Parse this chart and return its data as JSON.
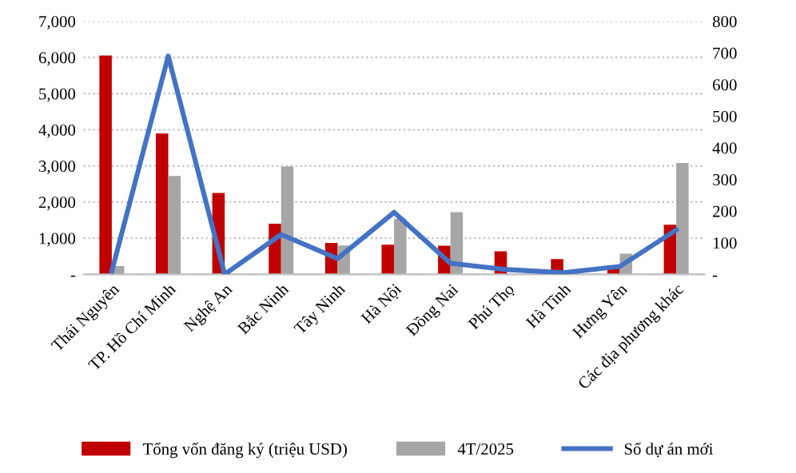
{
  "chart_data": {
    "type": "bar",
    "categories": [
      "Thái Nguyên",
      "TP. Hồ Chí Minh",
      "Nghệ An",
      "Bắc Ninh",
      "Tây Ninh",
      "Hà Nội",
      "Đồng Nai",
      "Phú Thọ",
      "Hà Tĩnh",
      "Hưng Yên",
      "Các địa phương khác"
    ],
    "series": [
      {
        "name": "Tổng vốn đăng ký (triệu USD)",
        "color": "#c00000",
        "values": [
          6050,
          3900,
          2250,
          1400,
          870,
          820,
          790,
          640,
          420,
          180,
          1370
        ]
      },
      {
        "name": "4T/2025",
        "color": "#a6a6a6",
        "values": [
          230,
          2720,
          null,
          2980,
          800,
          1540,
          1720,
          null,
          20,
          570,
          3080
        ]
      },
      {
        "name": "Số dự án mới",
        "type": "line",
        "axis": "y2",
        "color": "#4472c4",
        "values": [
          10,
          690,
          0,
          126,
          50,
          196,
          35,
          15,
          5,
          25,
          140
        ]
      }
    ],
    "ylim": [
      0,
      7000
    ],
    "yticks": [
      {
        "value": 0,
        "label": "-"
      },
      {
        "value": 1000,
        "label": "1,000"
      },
      {
        "value": 2000,
        "label": "2,000"
      },
      {
        "value": 3000,
        "label": "3,000"
      },
      {
        "value": 4000,
        "label": "4,000"
      },
      {
        "value": 5000,
        "label": "5,000"
      },
      {
        "value": 6000,
        "label": "6,000"
      },
      {
        "value": 7000,
        "label": "7,000"
      }
    ],
    "y2lim": [
      0,
      800
    ],
    "y2ticks": [
      {
        "value": 0,
        "label": "-"
      },
      100,
      200,
      300,
      400,
      500,
      600,
      700,
      800
    ],
    "grid": "y",
    "legend": "bottom",
    "marker": "none",
    "line_style": "solid"
  }
}
